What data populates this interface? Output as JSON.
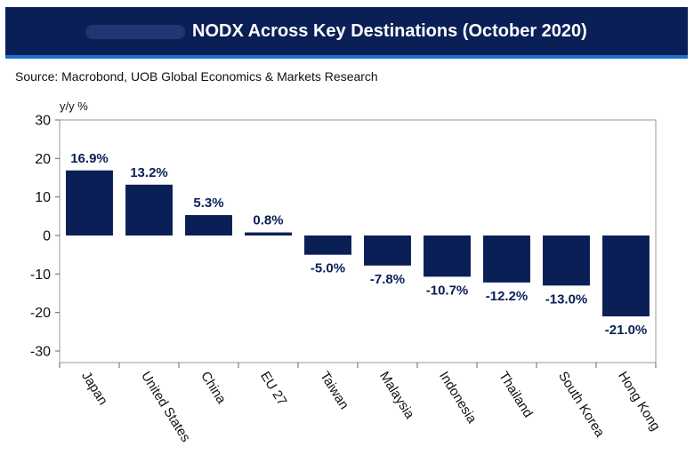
{
  "header": {
    "title": "NODX Across Key Destinations (October 2020)",
    "source": "Source: Macrobond, UOB Global Economics & Markets Research"
  },
  "colors": {
    "header_bg": "#0b1f57",
    "header_rule": "#1a73c9",
    "bar": "#0b1f57"
  },
  "chart_data": {
    "type": "bar",
    "title": "NODX Across Key Destinations (October 2020)",
    "ylabel": "y/y %",
    "xlabel": "",
    "ylim": [
      -33,
      30
    ],
    "yticks": [
      30,
      20,
      10,
      0,
      -10,
      -20,
      -30
    ],
    "grid": false,
    "categories": [
      "Japan",
      "United States",
      "China",
      "EU 27",
      "Taiwan",
      "Malaysia",
      "Indonesia",
      "Thailand",
      "South Korea",
      "Hong Kong"
    ],
    "values": [
      16.9,
      13.2,
      5.3,
      0.8,
      -5.0,
      -7.8,
      -10.7,
      -12.2,
      -13.0,
      -21.0
    ],
    "data_labels": [
      "16.9%",
      "13.2%",
      "5.3%",
      "0.8%",
      "-5.0%",
      "-7.8%",
      "-10.7%",
      "-12.2%",
      "-13.0%",
      "-21.0%"
    ]
  }
}
